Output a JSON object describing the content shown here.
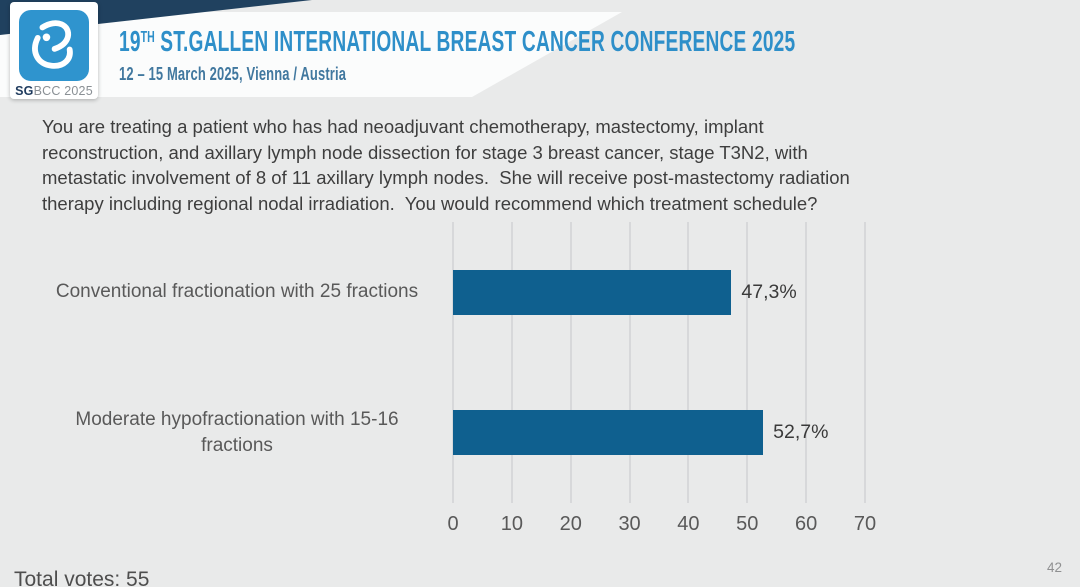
{
  "header": {
    "logo": {
      "icon": "sgbcc-droplet-icon",
      "text_bold": "SG",
      "text_rest": "BCC 2025"
    },
    "title": {
      "prefix": "19",
      "superscript": "TH",
      "rest": " ST.GALLEN INTERNATIONAL BREAST CANCER CONFERENCE 2025"
    },
    "subtitle": "12 – 15 March 2025, Vienna / Austria"
  },
  "question": {
    "lines": [
      "You are treating a patient who has had neoadjuvant chemotherapy, mastectomy, implant",
      "reconstruction, and axillary lymph node dissection for stage 3 breast cancer, stage T3N2, with",
      "metastatic involvement of 8 of 11 axillary lymph nodes.  She will receive post-mastectomy radiation",
      "therapy including regional nodal irradiation.  You would recommend which treatment schedule?"
    ]
  },
  "chart_data": {
    "type": "bar",
    "orientation": "horizontal",
    "categories": [
      "Conventional fractionation with 25 fractions",
      "Moderate hypofractionation with 15-16 fractions"
    ],
    "values": [
      47.3,
      52.7
    ],
    "value_labels": [
      "47,3%",
      "52,7%"
    ],
    "x_ticks": [
      0,
      10,
      20,
      30,
      40,
      50,
      60,
      70
    ],
    "xlim": [
      0,
      70
    ],
    "grid": true,
    "legend": false,
    "bar_color": "#0f608f",
    "gridline_color": "#d7d8da"
  },
  "footer": {
    "total_votes_label": "Total votes: 55",
    "page_number": "42"
  },
  "colors": {
    "title_blue": "#2e8fc9",
    "subtitle_blue": "#41789f",
    "navy_band": "#20415f",
    "logo_blue": "#2f94ce",
    "slide_background": "#e9eaea"
  }
}
